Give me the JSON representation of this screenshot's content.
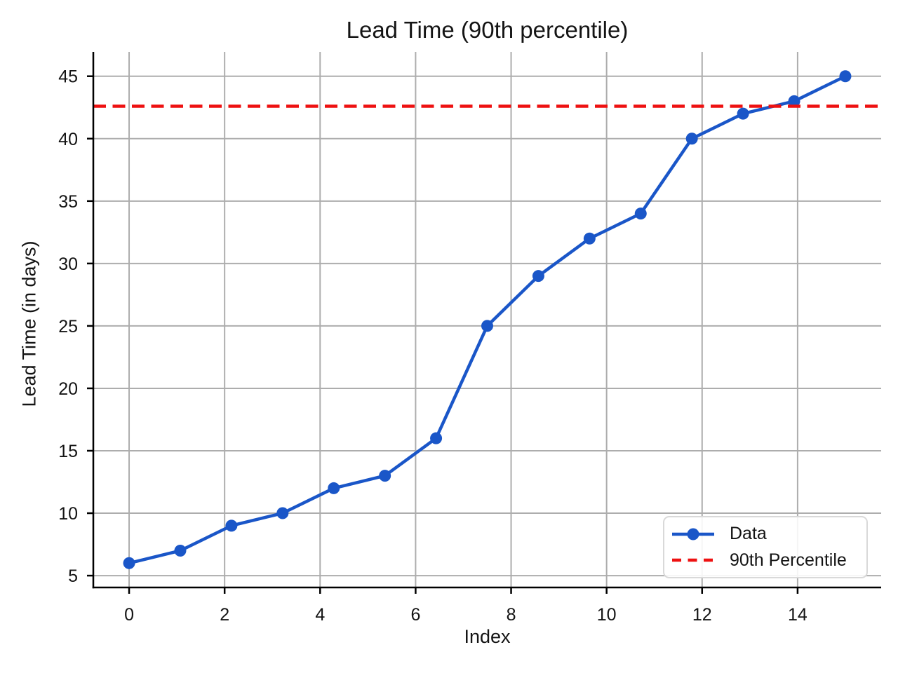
{
  "title": "Lead Time (90th percentile)",
  "colors": {
    "line": "#1a56c8",
    "percentile_line": "#ee1111",
    "grid": "#adadad",
    "spine": "#000000",
    "text": "#141414",
    "legend_border": "#d9d9d9",
    "background": "#ffffff"
  },
  "chart_data": {
    "type": "line",
    "title": "Lead Time (90th percentile)",
    "xlabel": "Index",
    "ylabel": "Lead Time (in days)",
    "x": [
      0,
      1.0714,
      2.1429,
      3.2143,
      4.2857,
      5.3571,
      6.4286,
      7.5,
      8.5714,
      9.6429,
      10.7143,
      11.7857,
      12.8571,
      13.9286,
      15
    ],
    "series": [
      {
        "name": "Data",
        "values": [
          6,
          7,
          9,
          10,
          12,
          13,
          16,
          25,
          29,
          32,
          34,
          40,
          42,
          43,
          45
        ]
      }
    ],
    "percentile_label": "90th Percentile",
    "percentile_value": 42.6,
    "x_ticks": [
      0,
      2,
      4,
      6,
      8,
      10,
      12,
      14
    ],
    "y_ticks": [
      5,
      10,
      15,
      20,
      25,
      30,
      35,
      40,
      45
    ],
    "xlim": [
      -0.75,
      15.75
    ],
    "ylim": [
      4.05,
      46.95
    ],
    "grid": true,
    "legend_position": "lower right"
  }
}
